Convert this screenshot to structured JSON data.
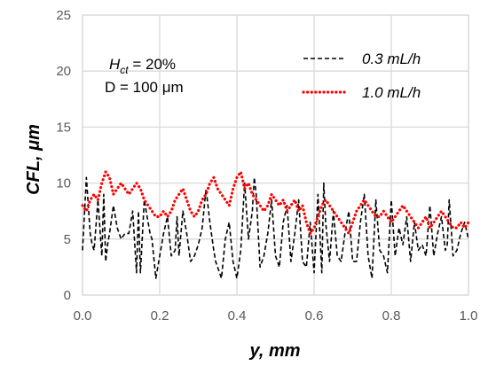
{
  "chart_data": {
    "type": "line",
    "title": "",
    "xlabel": "y, mm",
    "ylabel": "CFL, μm",
    "xlim": [
      0,
      1.0
    ],
    "ylim": [
      0,
      25
    ],
    "x_ticks": [
      "0.0",
      "0.2",
      "0.4",
      "0.6",
      "0.8",
      "1.0"
    ],
    "y_ticks": [
      "0",
      "5",
      "10",
      "15",
      "20",
      "25"
    ],
    "grid": true,
    "legend_position": "top-right",
    "annotations": {
      "line1_main": "H",
      "line1_sub": "ct",
      "line1_rest": " = 20%",
      "line2": "D = 100 μm"
    },
    "series": [
      {
        "name": "0.3 mL/h",
        "color": "#000000",
        "style": "dashed",
        "x": [
          0.0,
          0.01,
          0.02,
          0.025,
          0.03,
          0.04,
          0.05,
          0.055,
          0.06,
          0.065,
          0.07,
          0.08,
          0.09,
          0.1,
          0.11,
          0.12,
          0.13,
          0.14,
          0.145,
          0.15,
          0.16,
          0.17,
          0.175,
          0.18,
          0.19,
          0.2,
          0.21,
          0.22,
          0.23,
          0.24,
          0.245,
          0.25,
          0.26,
          0.27,
          0.28,
          0.29,
          0.3,
          0.31,
          0.32,
          0.33,
          0.34,
          0.345,
          0.35,
          0.36,
          0.37,
          0.38,
          0.39,
          0.4,
          0.41,
          0.42,
          0.43,
          0.44,
          0.445,
          0.45,
          0.46,
          0.47,
          0.48,
          0.49,
          0.5,
          0.51,
          0.52,
          0.53,
          0.54,
          0.55,
          0.56,
          0.57,
          0.58,
          0.585,
          0.59,
          0.6,
          0.61,
          0.62,
          0.625,
          0.63,
          0.64,
          0.65,
          0.66,
          0.67,
          0.68,
          0.69,
          0.7,
          0.71,
          0.72,
          0.73,
          0.74,
          0.75,
          0.76,
          0.77,
          0.78,
          0.79,
          0.8,
          0.81,
          0.82,
          0.83,
          0.84,
          0.85,
          0.86,
          0.87,
          0.88,
          0.89,
          0.9,
          0.91,
          0.92,
          0.93,
          0.94,
          0.945,
          0.95,
          0.96,
          0.97,
          0.98,
          0.99,
          1.0
        ],
        "y": [
          4.0,
          10.5,
          5.5,
          4.5,
          4.0,
          8.5,
          3.5,
          9.0,
          3.0,
          4.5,
          5.5,
          8.0,
          6.0,
          5.0,
          5.5,
          5.5,
          7.5,
          2.0,
          7.5,
          2.0,
          8.5,
          6.5,
          5.5,
          5.0,
          1.5,
          3.5,
          5.5,
          7.0,
          3.5,
          4.0,
          7.0,
          3.5,
          7.5,
          5.5,
          3.0,
          3.5,
          4.5,
          6.0,
          9.5,
          6.5,
          4.0,
          3.0,
          2.5,
          1.5,
          5.0,
          6.5,
          3.0,
          1.5,
          4.0,
          10.0,
          5.0,
          7.5,
          10.5,
          9.0,
          2.5,
          3.5,
          5.5,
          8.5,
          3.5,
          2.5,
          6.5,
          8.0,
          3.0,
          5.5,
          8.5,
          3.0,
          2.5,
          4.5,
          6.5,
          2.0,
          9.0,
          2.0,
          10.0,
          6.5,
          3.0,
          7.5,
          3.5,
          3.0,
          5.5,
          7.5,
          3.0,
          3.0,
          6.5,
          9.0,
          3.5,
          1.5,
          8.5,
          4.0,
          3.5,
          2.0,
          8.5,
          3.5,
          6.0,
          4.5,
          7.0,
          3.0,
          6.5,
          4.0,
          4.5,
          3.5,
          8.0,
          3.5,
          5.5,
          7.0,
          4.0,
          4.5,
          8.5,
          3.5,
          4.0,
          5.5,
          6.5,
          5.0
        ]
      },
      {
        "name": "1.0 mL/h",
        "color": "#ff0000",
        "style": "dotted",
        "x": [
          0.0,
          0.01,
          0.02,
          0.03,
          0.04,
          0.05,
          0.06,
          0.07,
          0.08,
          0.09,
          0.1,
          0.11,
          0.12,
          0.13,
          0.14,
          0.15,
          0.16,
          0.17,
          0.18,
          0.19,
          0.2,
          0.21,
          0.22,
          0.23,
          0.24,
          0.25,
          0.26,
          0.27,
          0.28,
          0.29,
          0.3,
          0.31,
          0.32,
          0.33,
          0.34,
          0.35,
          0.36,
          0.37,
          0.38,
          0.39,
          0.4,
          0.41,
          0.42,
          0.43,
          0.44,
          0.45,
          0.46,
          0.47,
          0.48,
          0.49,
          0.5,
          0.51,
          0.52,
          0.53,
          0.54,
          0.55,
          0.56,
          0.57,
          0.58,
          0.59,
          0.6,
          0.61,
          0.62,
          0.63,
          0.64,
          0.65,
          0.66,
          0.67,
          0.68,
          0.69,
          0.7,
          0.71,
          0.72,
          0.73,
          0.74,
          0.75,
          0.76,
          0.77,
          0.78,
          0.79,
          0.8,
          0.81,
          0.82,
          0.83,
          0.84,
          0.85,
          0.86,
          0.87,
          0.88,
          0.89,
          0.9,
          0.91,
          0.92,
          0.93,
          0.94,
          0.95,
          0.96,
          0.97,
          0.98,
          0.99,
          1.0
        ],
        "y": [
          8.0,
          7.5,
          8.5,
          9.0,
          8.5,
          10.0,
          11.0,
          10.5,
          9.0,
          9.5,
          10.0,
          9.5,
          9.0,
          9.5,
          10.0,
          9.5,
          8.5,
          8.0,
          7.5,
          7.0,
          7.0,
          7.5,
          7.0,
          7.5,
          8.5,
          9.0,
          9.5,
          8.5,
          7.5,
          7.0,
          7.5,
          8.5,
          9.0,
          10.0,
          10.5,
          9.5,
          9.0,
          8.5,
          8.0,
          9.5,
          10.5,
          11.0,
          9.5,
          10.0,
          9.0,
          8.5,
          8.0,
          7.5,
          8.0,
          9.0,
          8.5,
          8.0,
          8.5,
          7.5,
          8.0,
          8.5,
          7.5,
          8.0,
          6.5,
          5.5,
          6.0,
          7.0,
          8.0,
          8.5,
          8.0,
          7.5,
          7.0,
          6.5,
          6.0,
          5.5,
          6.5,
          7.5,
          8.0,
          8.5,
          8.0,
          7.5,
          7.0,
          7.0,
          7.5,
          7.0,
          6.5,
          7.0,
          7.5,
          8.0,
          7.5,
          7.0,
          6.5,
          6.0,
          6.5,
          7.0,
          6.0,
          6.5,
          7.0,
          7.5,
          7.0,
          6.5,
          6.0,
          6.0,
          6.5,
          6.0,
          6.5
        ]
      }
    ]
  }
}
